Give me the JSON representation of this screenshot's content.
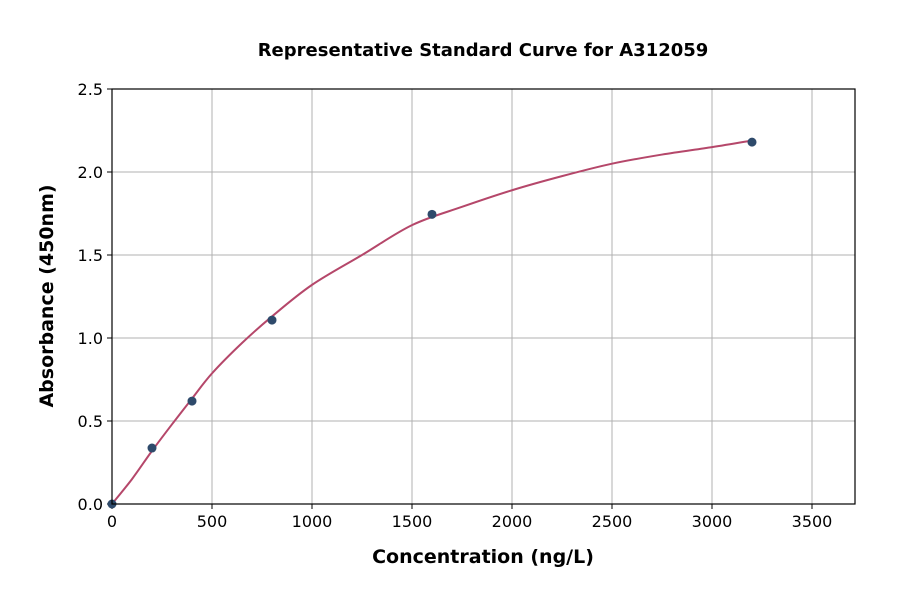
{
  "chart_data": {
    "type": "scatter",
    "title": "Representative Standard Curve for A312059",
    "xlabel": "Concentration (ng/L)",
    "ylabel": "Absorbance (450nm)",
    "xlim": [
      0,
      3715
    ],
    "ylim": [
      0,
      2.5
    ],
    "xticks": [
      "0",
      "500",
      "1000",
      "1500",
      "2000",
      "2500",
      "3000",
      "3500"
    ],
    "yticks": [
      "0.0",
      "0.5",
      "1.0",
      "1.5",
      "2.0",
      "2.5"
    ],
    "grid": true,
    "points": {
      "x": [
        0,
        200,
        400,
        800,
        1600,
        3200
      ],
      "y": [
        0.0,
        0.337,
        0.62,
        1.108,
        1.745,
        2.18
      ],
      "color": "#2e4a6b"
    },
    "fit_curve": {
      "x": [
        0,
        100,
        200,
        300,
        400,
        500,
        650,
        800,
        1000,
        1250,
        1500,
        1750,
        2000,
        2250,
        2500,
        2750,
        3000,
        3200
      ],
      "y": [
        0.0,
        0.15,
        0.32,
        0.48,
        0.635,
        0.787,
        0.97,
        1.13,
        1.32,
        1.5,
        1.68,
        1.79,
        1.89,
        1.975,
        2.05,
        2.105,
        2.15,
        2.19
      ],
      "color": "#b5476a"
    }
  }
}
